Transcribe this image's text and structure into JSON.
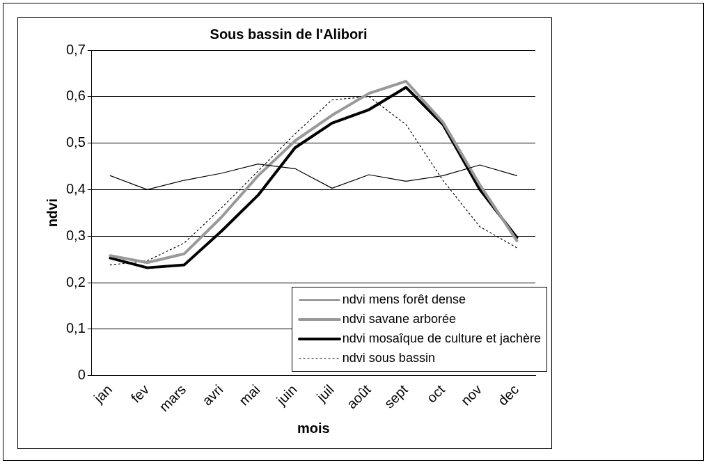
{
  "chart_data": {
    "type": "line",
    "title": "Sous bassin de l'Alibori",
    "xlabel": "mois",
    "ylabel": "ndvi",
    "categories": [
      "jan",
      "fev",
      "mars",
      "avri",
      "mai",
      "juin",
      "juil",
      "août",
      "sept",
      "oct",
      "nov",
      "dec"
    ],
    "ylim": [
      0,
      0.7
    ],
    "yticks": [
      {
        "value": 0,
        "label": "0"
      },
      {
        "value": 0.1,
        "label": "0,1"
      },
      {
        "value": 0.2,
        "label": "0,2"
      },
      {
        "value": 0.3,
        "label": "0,3"
      },
      {
        "value": 0.4,
        "label": "0,4"
      },
      {
        "value": 0.5,
        "label": "0,5"
      },
      {
        "value": 0.6,
        "label": "0,6"
      },
      {
        "value": 0.7,
        "label": "0,7"
      }
    ],
    "grid": "y",
    "legend": "bottom right",
    "marker": "none",
    "series": [
      {
        "name": "ndvi mens forêt dense",
        "color": "#000000",
        "line_style": "solid",
        "values": [
          0.43,
          0.4,
          0.42,
          0.435,
          0.455,
          0.445,
          0.403,
          0.432,
          0.418,
          0.43,
          0.453,
          0.43
        ]
      },
      {
        "name": "ndvi savane arborée",
        "color": "#999999",
        "line_style": "solid",
        "values": [
          0.258,
          0.243,
          0.262,
          0.34,
          0.43,
          0.505,
          0.56,
          0.607,
          0.633,
          0.545,
          0.41,
          0.29
        ]
      },
      {
        "name": "ndvi mosaîque de culture et jachère",
        "color": "#000000",
        "line_style": "solid",
        "values": [
          0.253,
          0.232,
          0.238,
          0.31,
          0.388,
          0.49,
          0.543,
          0.572,
          0.62,
          0.54,
          0.4,
          0.297
        ]
      },
      {
        "name": "ndvi sous bassin",
        "color": "#000000",
        "line_style": "dotted",
        "values": [
          0.238,
          0.247,
          0.285,
          0.36,
          0.44,
          0.52,
          0.593,
          0.6,
          0.54,
          0.42,
          0.32,
          0.275
        ]
      }
    ]
  }
}
